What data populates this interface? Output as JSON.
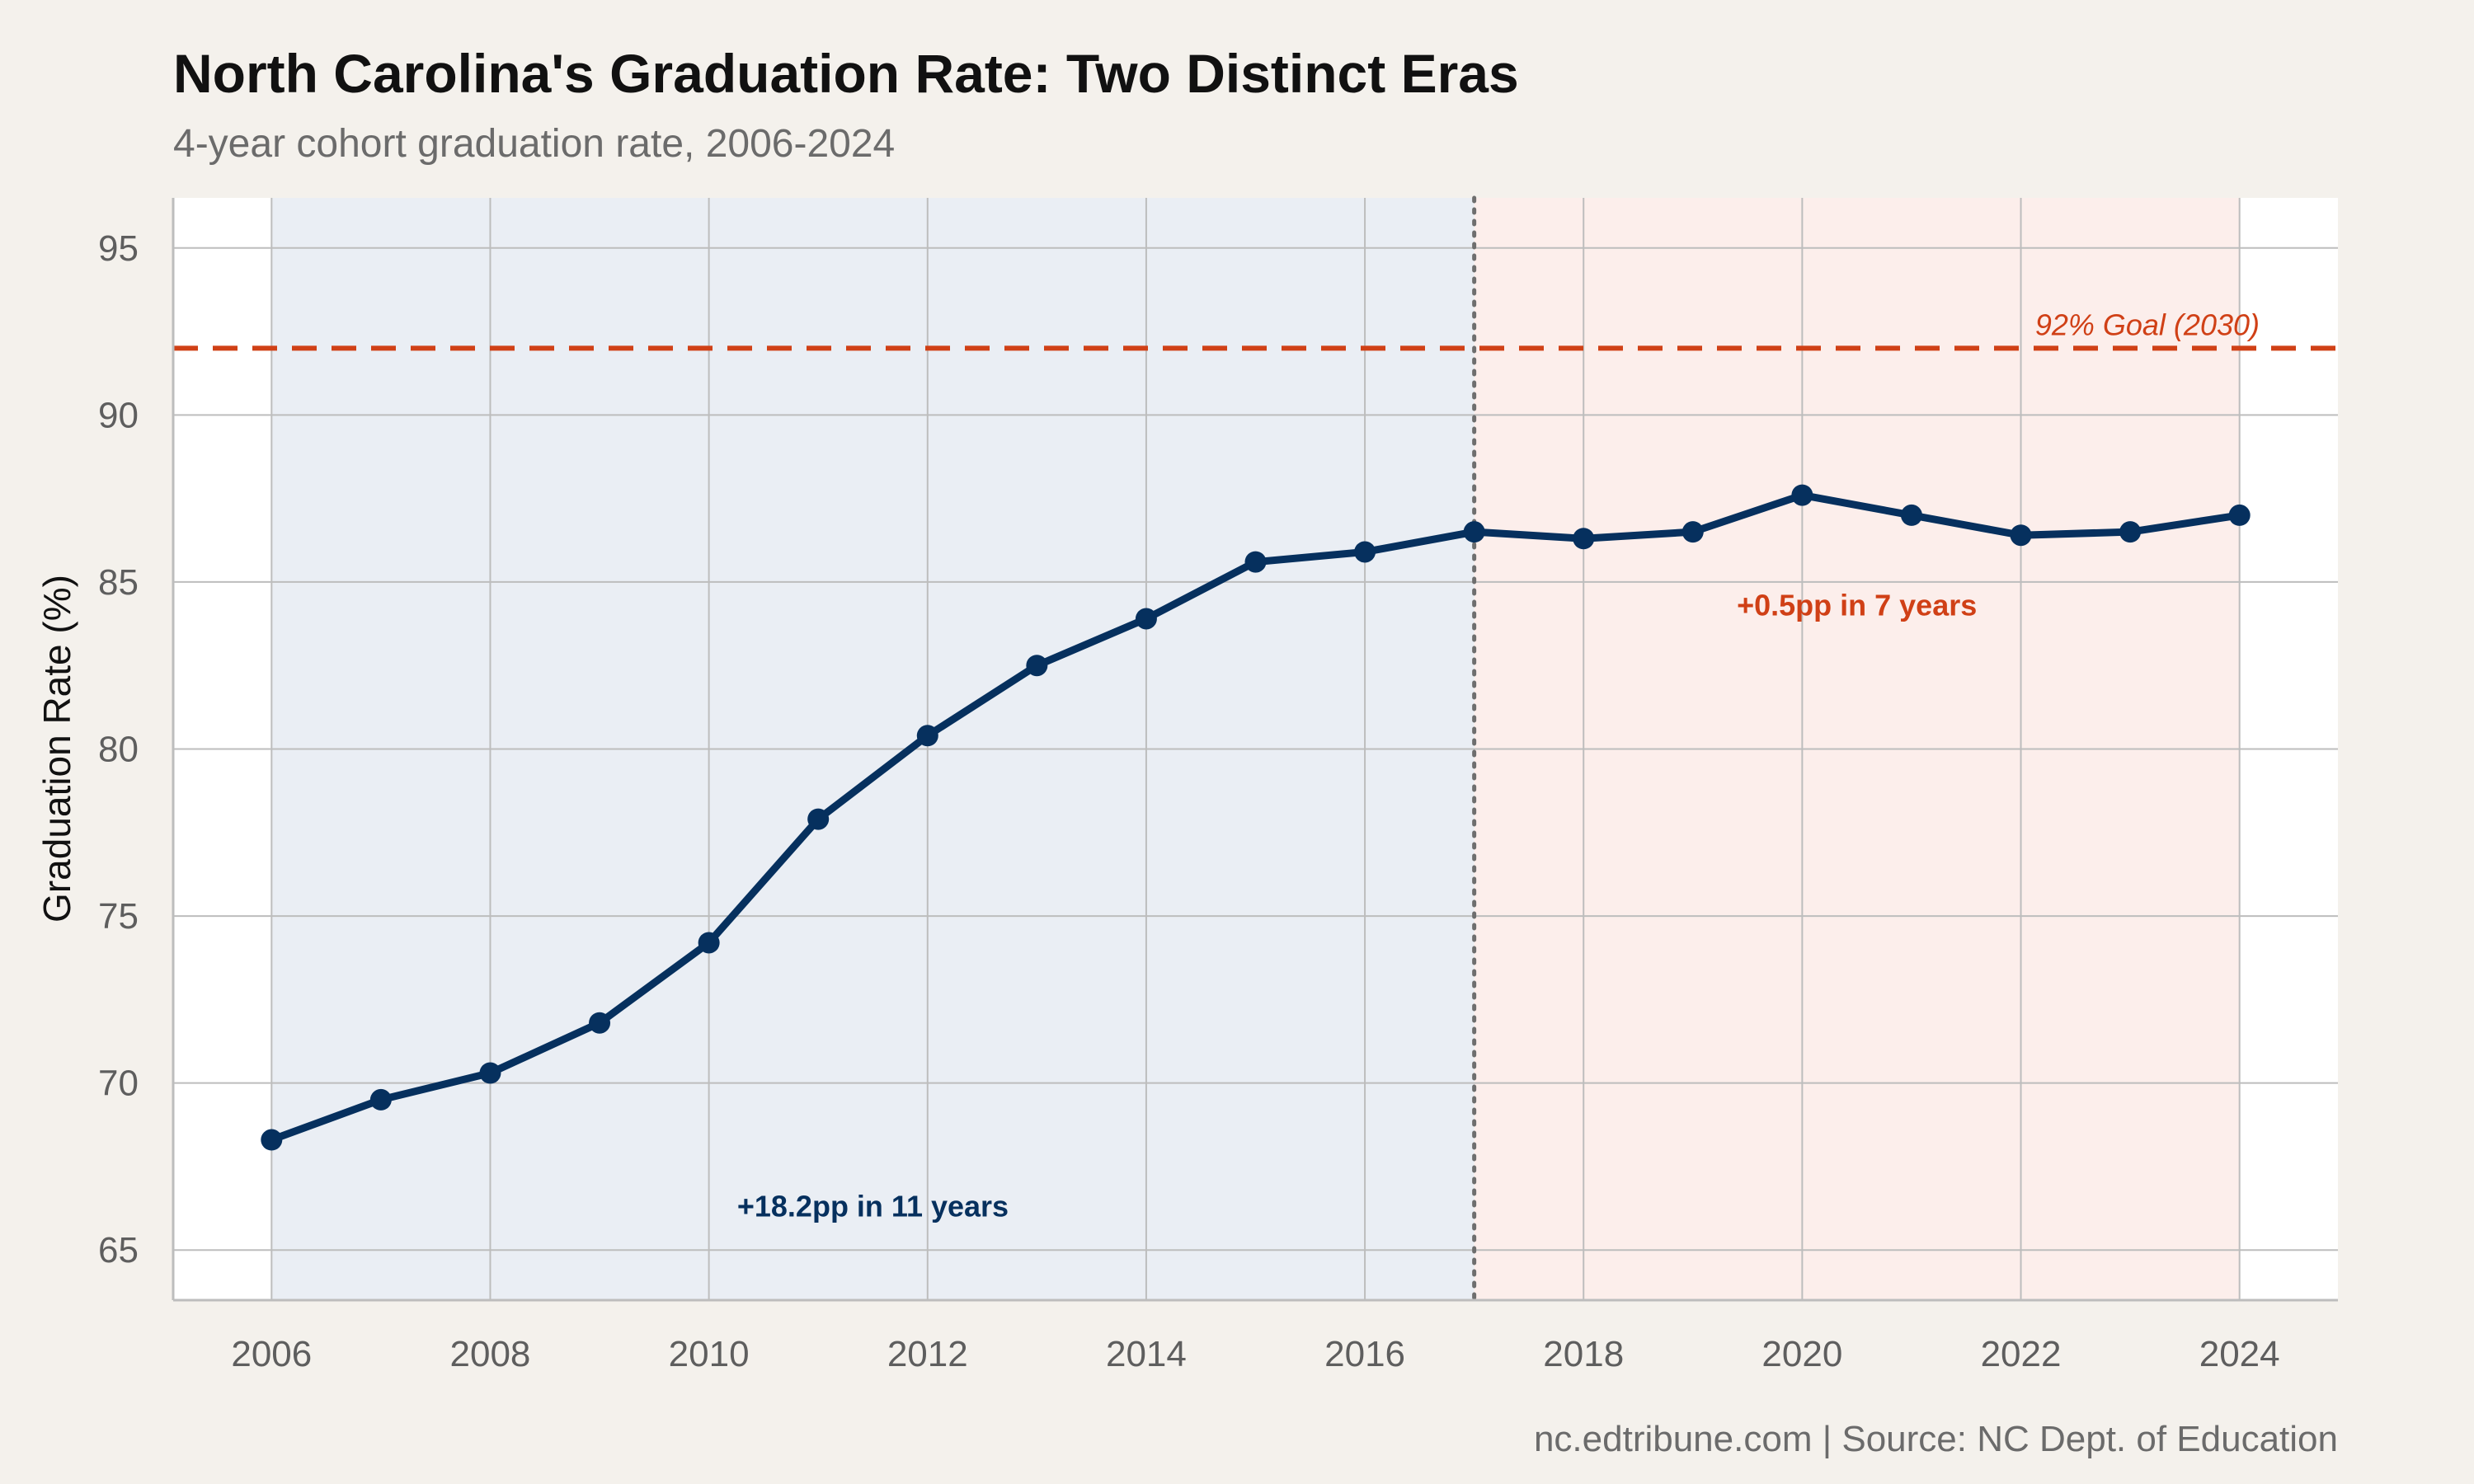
{
  "chart_data": {
    "type": "line",
    "title": "North Carolina's Graduation Rate: Two Distinct Eras",
    "subtitle": "4-year cohort graduation rate, 2006-2024",
    "xlabel": "",
    "ylabel": "Graduation Rate (%)",
    "caption": "nc.edtribune.com | Source: NC Dept. of Education",
    "x": [
      2006,
      2007,
      2008,
      2009,
      2010,
      2011,
      2012,
      2013,
      2014,
      2015,
      2016,
      2017,
      2018,
      2019,
      2020,
      2021,
      2022,
      2023,
      2024
    ],
    "series": [
      {
        "values": [
          68.3,
          69.5,
          70.3,
          71.8,
          74.2,
          77.9,
          80.4,
          82.5,
          83.9,
          85.6,
          85.9,
          86.5,
          86.3,
          86.5,
          87.6,
          87.0,
          86.4,
          86.5,
          87.0
        ],
        "color": "#06305e"
      }
    ],
    "xlim": [
      2005.1,
      2024.9
    ],
    "ylim": [
      63.5,
      96.5
    ],
    "xticks": [
      "2006",
      "2008",
      "2010",
      "2012",
      "2014",
      "2016",
      "2018",
      "2020",
      "2022",
      "2024"
    ],
    "yticks": [
      "65",
      "70",
      "75",
      "80",
      "85",
      "90",
      "95"
    ],
    "grid": true,
    "eras": [
      {
        "from": 2006,
        "to": 2017,
        "color": "#eaeef4"
      },
      {
        "from": 2017,
        "to": 2024,
        "color": "#fceeeb"
      }
    ],
    "divider_x": 2017,
    "goal": {
      "value": 92,
      "label": "92% Goal (2030)",
      "color": "#d04016"
    },
    "annotations": [
      {
        "text": "+18.2pp in 11 years",
        "x": 2011.5,
        "y": 66,
        "color": "#06305e"
      },
      {
        "text": "+0.5pp in 7 years",
        "x": 2020.5,
        "y": 84,
        "color": "#d04016"
      }
    ]
  }
}
